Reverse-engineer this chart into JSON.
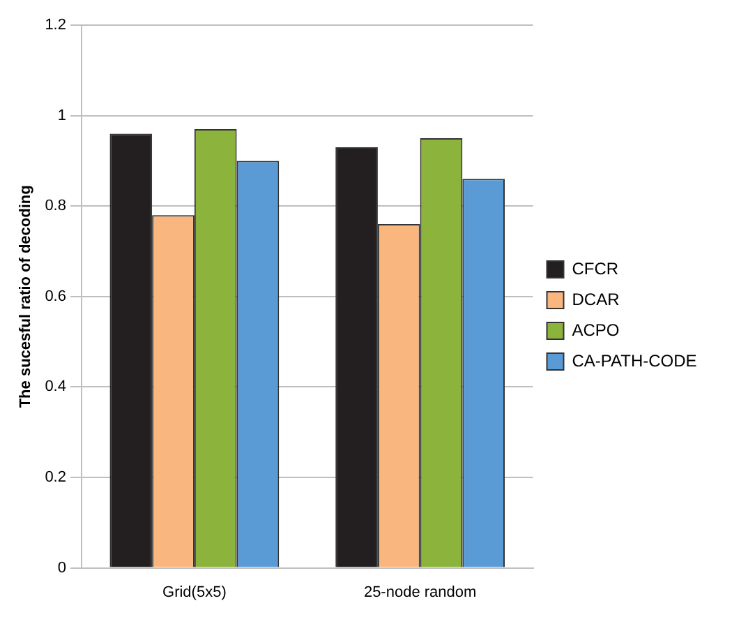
{
  "chart_data": {
    "type": "bar",
    "ylabel": "The sucesful ratio of decoding",
    "categories": [
      "Grid(5x5)",
      "25-node random"
    ],
    "series": [
      {
        "name": "CFCR",
        "color": "#231f20",
        "values": [
          0.96,
          0.93
        ]
      },
      {
        "name": "DCAR",
        "color": "#f9b77f",
        "values": [
          0.78,
          0.76
        ]
      },
      {
        "name": "ACPO",
        "color": "#8cb43c",
        "values": [
          0.97,
          0.95
        ]
      },
      {
        "name": "CA-PATH-CODE",
        "color": "#5b9bd5",
        "values": [
          0.9,
          0.86
        ]
      }
    ],
    "ylim": [
      0,
      1.2
    ],
    "yticks": [
      0,
      0.2,
      0.4,
      0.6,
      0.8,
      1,
      1.2
    ],
    "grid": "y",
    "legend": "right"
  }
}
